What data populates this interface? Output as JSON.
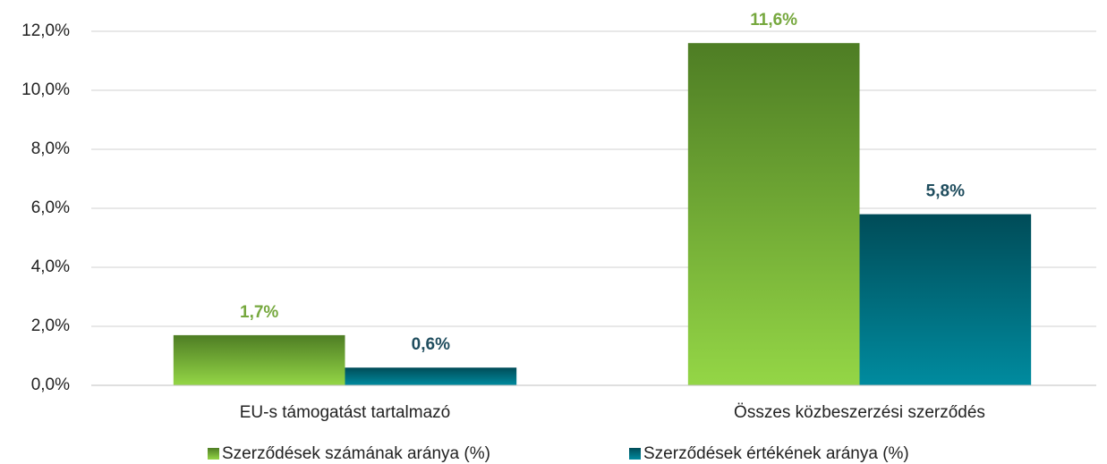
{
  "chart_data": {
    "type": "bar",
    "categories": [
      "EU-s támogatást tartalmazó",
      "Összes közbeszerzési szerződés"
    ],
    "series": [
      {
        "name": "Szerződések számának aránya (%)",
        "gradient": [
          "#4e7d24",
          "#94d646"
        ],
        "label_color": "#76a83e",
        "values": [
          1.7,
          11.6
        ],
        "value_labels": [
          "1,7%",
          "11,6%"
        ]
      },
      {
        "name": "Szerződések értékének aránya (%)",
        "gradient": [
          "#004c58",
          "#008b9f"
        ],
        "label_color": "#1f4d5e",
        "values": [
          0.6,
          5.8
        ],
        "value_labels": [
          "0,6%",
          "5,8%"
        ]
      }
    ],
    "ylim": [
      0,
      12
    ],
    "yticks": [
      {
        "value": 0,
        "label": "0,0%"
      },
      {
        "value": 2,
        "label": "2,0%"
      },
      {
        "value": 4,
        "label": "4,0%"
      },
      {
        "value": 6,
        "label": "6,0%"
      },
      {
        "value": 8,
        "label": "8,0%"
      },
      {
        "value": 10,
        "label": "10,0%"
      },
      {
        "value": 12,
        "label": "12,0%"
      }
    ],
    "grid": true,
    "legend": "bottom"
  }
}
